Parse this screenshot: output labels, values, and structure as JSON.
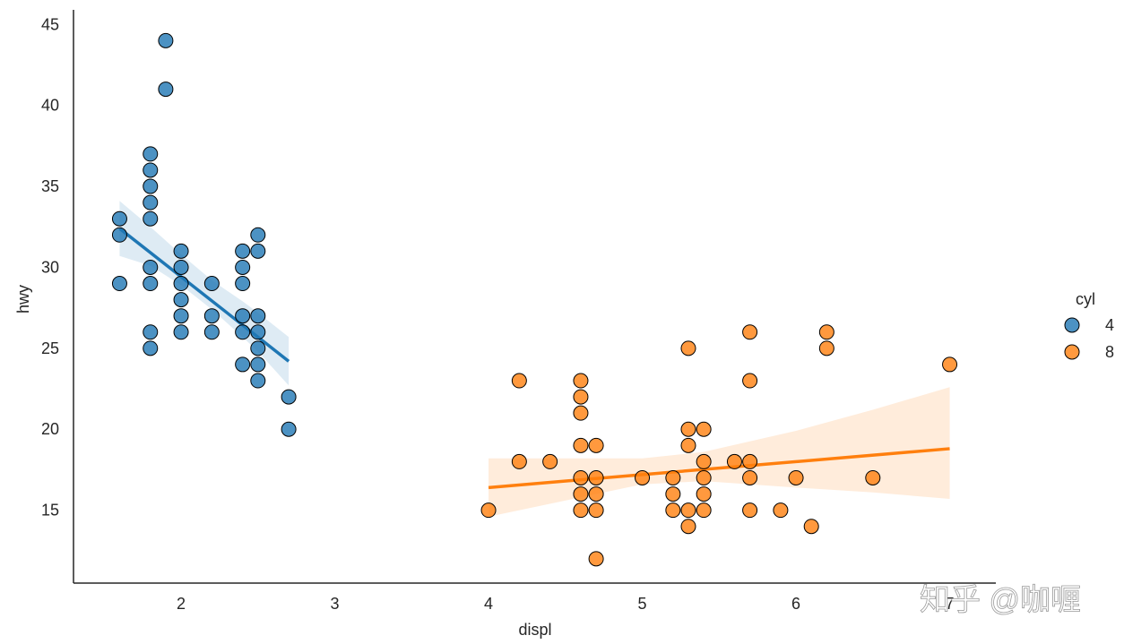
{
  "chart_data": {
    "type": "scatter",
    "xlabel": "displ",
    "ylabel": "hwy",
    "xlim": [
      1.3,
      7.3
    ],
    "ylim": [
      10.5,
      45.9
    ],
    "xticks": [
      2,
      3,
      4,
      5,
      6,
      7
    ],
    "yticks": [
      15,
      20,
      25,
      30,
      35,
      40,
      45
    ],
    "grid": false,
    "legend": {
      "title": "cyl",
      "placement": "right"
    },
    "series": [
      {
        "name": "4",
        "color": "#1f77b4",
        "points": [
          [
            1.6,
            33
          ],
          [
            1.6,
            32
          ],
          [
            1.6,
            29
          ],
          [
            1.8,
            37
          ],
          [
            1.8,
            36
          ],
          [
            1.8,
            35
          ],
          [
            1.8,
            34
          ],
          [
            1.8,
            33
          ],
          [
            1.8,
            30
          ],
          [
            1.8,
            29
          ],
          [
            1.8,
            26
          ],
          [
            1.8,
            25
          ],
          [
            1.9,
            44
          ],
          [
            1.9,
            41
          ],
          [
            2.0,
            31
          ],
          [
            2.0,
            30
          ],
          [
            2.0,
            29
          ],
          [
            2.0,
            28
          ],
          [
            2.0,
            27
          ],
          [
            2.0,
            26
          ],
          [
            2.2,
            29
          ],
          [
            2.2,
            27
          ],
          [
            2.2,
            26
          ],
          [
            2.4,
            31
          ],
          [
            2.4,
            30
          ],
          [
            2.4,
            29
          ],
          [
            2.4,
            27
          ],
          [
            2.4,
            26
          ],
          [
            2.4,
            24
          ],
          [
            2.5,
            32
          ],
          [
            2.5,
            31
          ],
          [
            2.5,
            27
          ],
          [
            2.5,
            26
          ],
          [
            2.5,
            25
          ],
          [
            2.5,
            24
          ],
          [
            2.5,
            23
          ],
          [
            2.7,
            22
          ],
          [
            2.7,
            20
          ]
        ],
        "fit": {
          "x": [
            1.6,
            2.7
          ],
          "y": [
            32.4,
            24.2
          ]
        },
        "ci": {
          "x": [
            1.6,
            1.8,
            2.0,
            2.2,
            2.4,
            2.5,
            2.7
          ],
          "lower": [
            30.7,
            30.1,
            28.9,
            27.4,
            25.7,
            24.8,
            22.7
          ],
          "upper": [
            34.1,
            32.5,
            30.8,
            29.2,
            27.9,
            27.2,
            25.7
          ]
        }
      },
      {
        "name": "8",
        "color": "#ff7f0e",
        "points": [
          [
            4.0,
            15
          ],
          [
            4.2,
            23
          ],
          [
            4.2,
            18
          ],
          [
            4.4,
            18
          ],
          [
            4.6,
            23
          ],
          [
            4.6,
            22
          ],
          [
            4.6,
            21
          ],
          [
            4.6,
            19
          ],
          [
            4.6,
            17
          ],
          [
            4.6,
            16
          ],
          [
            4.6,
            15
          ],
          [
            4.7,
            19
          ],
          [
            4.7,
            17
          ],
          [
            4.7,
            16
          ],
          [
            4.7,
            15
          ],
          [
            4.7,
            12
          ],
          [
            5.0,
            17
          ],
          [
            5.2,
            17
          ],
          [
            5.2,
            16
          ],
          [
            5.2,
            15
          ],
          [
            5.3,
            25
          ],
          [
            5.3,
            20
          ],
          [
            5.3,
            19
          ],
          [
            5.3,
            15
          ],
          [
            5.3,
            14
          ],
          [
            5.4,
            20
          ],
          [
            5.4,
            18
          ],
          [
            5.4,
            17
          ],
          [
            5.4,
            16
          ],
          [
            5.4,
            15
          ],
          [
            5.6,
            18
          ],
          [
            5.7,
            26
          ],
          [
            5.7,
            23
          ],
          [
            5.7,
            18
          ],
          [
            5.7,
            17
          ],
          [
            5.7,
            15
          ],
          [
            5.9,
            15
          ],
          [
            6.0,
            17
          ],
          [
            6.1,
            14
          ],
          [
            6.2,
            26
          ],
          [
            6.2,
            25
          ],
          [
            6.5,
            17
          ],
          [
            7.0,
            24
          ]
        ],
        "fit": {
          "x": [
            4.0,
            7.0
          ],
          "y": [
            16.4,
            18.8
          ]
        },
        "ci": {
          "x": [
            4.0,
            4.6,
            5.0,
            5.4,
            6.0,
            6.5,
            7.0
          ],
          "lower": [
            14.6,
            15.8,
            16.6,
            16.8,
            16.4,
            16.1,
            15.7
          ],
          "upper": [
            18.2,
            18.2,
            18.2,
            18.6,
            19.9,
            21.2,
            22.6
          ]
        }
      }
    ]
  },
  "watermark": "知乎 @咖喱"
}
